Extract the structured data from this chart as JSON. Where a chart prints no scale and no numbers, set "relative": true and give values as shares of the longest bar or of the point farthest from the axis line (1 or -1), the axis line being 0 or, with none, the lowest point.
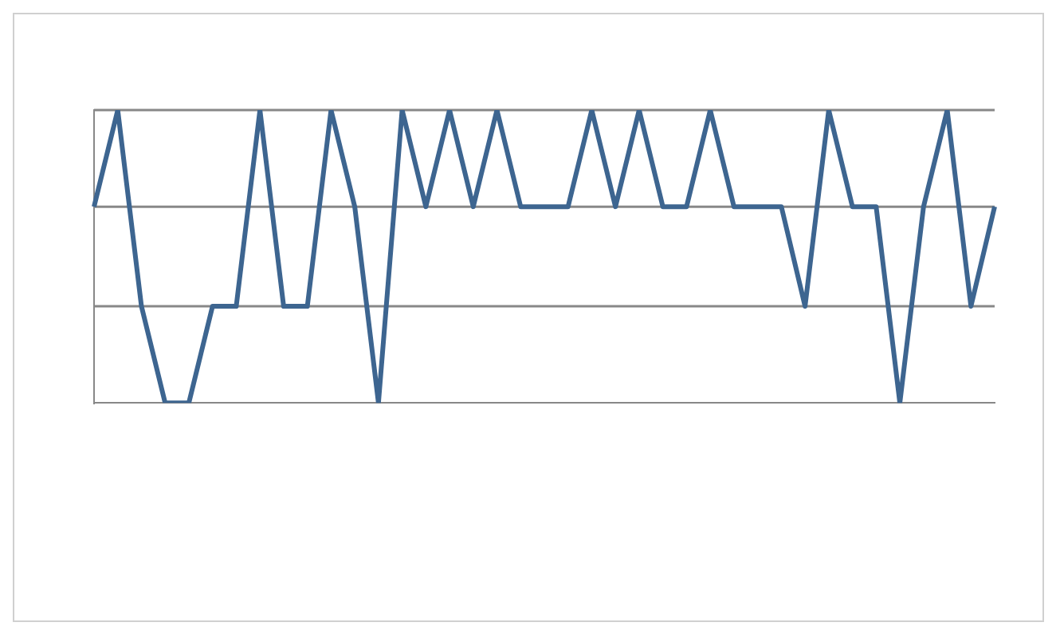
{
  "chart_data": {
    "type": "line",
    "relative": true,
    "grid": false,
    "legend": false,
    "ref_lines": [
      {
        "axis": "y",
        "value": 0.33,
        "color": "#888888"
      },
      {
        "axis": "y",
        "value": 0.67,
        "color": "#888888"
      },
      {
        "axis": "y",
        "value": 1,
        "color": "#888888"
      }
    ],
    "marker": "none",
    "line_style": "solid",
    "categories": [
      null,
      null,
      null,
      null,
      null,
      null,
      null,
      null,
      null,
      null,
      null,
      null,
      null,
      null,
      null,
      null,
      null,
      null,
      null,
      null,
      null,
      null,
      null,
      null,
      null,
      null,
      null,
      null,
      null,
      null,
      null,
      null,
      null,
      null,
      null,
      null,
      null,
      null,
      null
    ],
    "series": [
      {
        "color": "#3d6590",
        "values": [
          0.67,
          1,
          0.33,
          0,
          0,
          0.33,
          0.33,
          1,
          0.33,
          0.33,
          1,
          0.67,
          0,
          1,
          0.67,
          1,
          0.67,
          1,
          0.67,
          0.67,
          0.67,
          1,
          0.67,
          1,
          0.67,
          0.67,
          1,
          0.67,
          0.67,
          0.67,
          0.33,
          1,
          0.67,
          0.67,
          0,
          0.67,
          1,
          0.33,
          0.67
        ]
      }
    ]
  }
}
